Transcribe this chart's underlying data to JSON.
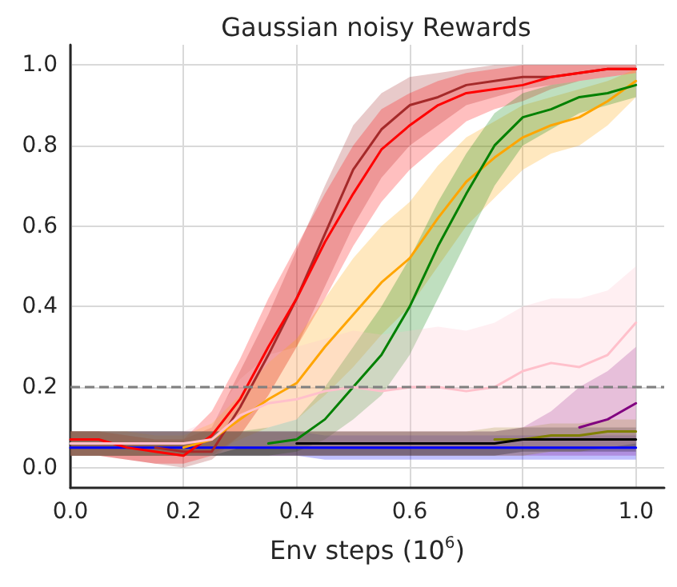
{
  "chart_data": {
    "type": "line",
    "title": "Gaussian noisy Rewards",
    "xlabel": "Env steps (10$^{6}$)",
    "x": [
      0,
      0.05,
      0.1,
      0.15,
      0.2,
      0.25,
      0.3,
      0.35,
      0.4,
      0.45,
      0.5,
      0.55,
      0.6,
      0.65,
      0.7,
      0.75,
      0.8,
      0.85,
      0.9,
      0.95,
      1.0
    ],
    "xlim": [
      0,
      1.05
    ],
    "xticks": [
      {
        "value": 0,
        "label": "0.0"
      },
      0.2,
      0.4,
      0.6,
      0.8,
      {
        "value": 1,
        "label": "1.0"
      }
    ],
    "ylim": [
      -0.05,
      1.05
    ],
    "yticks": [
      {
        "value": 0,
        "label": "0.0"
      },
      0.2,
      0.4,
      0.6,
      0.8,
      {
        "value": 1,
        "label": "1.0"
      }
    ],
    "grid": true,
    "ref_lines": [
      {
        "axis": "y",
        "value": 0.2,
        "color": "#808080",
        "line_style": "dashed"
      }
    ],
    "series": [
      {
        "color": "#0000ff",
        "values": [
          0.05,
          0.05,
          0.05,
          0.05,
          0.05,
          0.05,
          0.05,
          0.05,
          0.05,
          0.05,
          0.05,
          0.05,
          0.05,
          0.05,
          0.05,
          0.05,
          0.05,
          0.05,
          0.05,
          0.05,
          0.05
        ],
        "lower": [
          0.03,
          0.03,
          0.03,
          0.03,
          0.03,
          0.03,
          0.03,
          0.03,
          0.03,
          0.02,
          0.02,
          0.02,
          0.02,
          0.02,
          0.02,
          0.02,
          0.02,
          0.02,
          0.02,
          0.02,
          0.02
        ],
        "upper": [
          0.09,
          0.09,
          0.09,
          0.09,
          0.09,
          0.09,
          0.09,
          0.09,
          0.09,
          0.08,
          0.08,
          0.08,
          0.08,
          0.08,
          0.08,
          0.08,
          0.08,
          0.08,
          0.08,
          0.08,
          0.08
        ]
      },
      {
        "color": "#a52a2a",
        "values": [
          null,
          null,
          null,
          0.05,
          0.04,
          0.04,
          0.15,
          0.28,
          0.42,
          0.58,
          0.74,
          0.84,
          0.9,
          0.92,
          0.95,
          0.96,
          0.97,
          0.97,
          0.98,
          0.99,
          0.99
        ],
        "lower": [
          0.03,
          0.03,
          0.02,
          0.01,
          0.0,
          0.02,
          0.08,
          0.18,
          0.3,
          0.45,
          0.6,
          0.72,
          0.8,
          0.85,
          0.9,
          0.92,
          0.94,
          0.95,
          0.96,
          0.97,
          0.98
        ],
        "upper": [
          0.09,
          0.09,
          0.08,
          0.07,
          0.07,
          0.1,
          0.24,
          0.38,
          0.54,
          0.7,
          0.85,
          0.93,
          0.97,
          0.98,
          0.99,
          1.0,
          1.0,
          1.0,
          1.0,
          1.0,
          1.0
        ]
      },
      {
        "color": "#ff0000",
        "values": [
          0.07,
          0.07,
          0.05,
          0.04,
          0.03,
          0.08,
          0.17,
          0.3,
          0.42,
          0.56,
          0.68,
          0.79,
          0.85,
          0.9,
          0.93,
          0.94,
          0.95,
          0.97,
          0.98,
          0.99,
          0.99
        ],
        "lower": [
          0.03,
          0.03,
          0.02,
          0.01,
          0.01,
          0.03,
          0.08,
          0.18,
          0.3,
          0.42,
          0.55,
          0.66,
          0.74,
          0.8,
          0.86,
          0.89,
          0.91,
          0.94,
          0.96,
          0.97,
          0.98
        ],
        "upper": [
          0.09,
          0.09,
          0.08,
          0.07,
          0.07,
          0.14,
          0.27,
          0.42,
          0.55,
          0.68,
          0.8,
          0.89,
          0.93,
          0.96,
          0.98,
          0.99,
          1.0,
          1.0,
          1.0,
          1.0,
          1.0
        ]
      },
      {
        "color": "#ffa500",
        "values": [
          null,
          null,
          null,
          null,
          0.05,
          0.07,
          0.12,
          0.17,
          0.21,
          0.3,
          0.38,
          0.46,
          0.52,
          0.62,
          0.71,
          0.77,
          0.82,
          0.85,
          0.87,
          0.91,
          0.96
        ],
        "lower": [
          0.03,
          0.03,
          0.03,
          0.03,
          0.03,
          0.04,
          0.07,
          0.1,
          0.12,
          0.18,
          0.25,
          0.33,
          0.4,
          0.5,
          0.6,
          0.67,
          0.74,
          0.78,
          0.8,
          0.85,
          0.92
        ],
        "upper": [
          0.09,
          0.09,
          0.09,
          0.08,
          0.08,
          0.11,
          0.18,
          0.26,
          0.32,
          0.42,
          0.52,
          0.6,
          0.66,
          0.75,
          0.82,
          0.86,
          0.9,
          0.92,
          0.94,
          0.96,
          0.99
        ]
      },
      {
        "color": "#008000",
        "values": [
          null,
          null,
          null,
          null,
          null,
          null,
          null,
          0.06,
          0.07,
          0.12,
          0.2,
          0.28,
          0.4,
          0.55,
          0.68,
          0.8,
          0.87,
          0.89,
          0.92,
          0.93,
          0.95
        ],
        "lower": [
          0.03,
          0.03,
          0.03,
          0.03,
          0.03,
          0.03,
          0.03,
          0.03,
          0.04,
          0.07,
          0.12,
          0.18,
          0.28,
          0.42,
          0.56,
          0.7,
          0.8,
          0.84,
          0.88,
          0.9,
          0.92
        ],
        "upper": [
          0.09,
          0.09,
          0.09,
          0.09,
          0.09,
          0.09,
          0.09,
          0.1,
          0.12,
          0.2,
          0.3,
          0.4,
          0.52,
          0.66,
          0.78,
          0.88,
          0.93,
          0.95,
          0.96,
          0.97,
          0.98
        ]
      },
      {
        "color": "#800080",
        "values": [
          null,
          null,
          null,
          null,
          null,
          null,
          null,
          null,
          null,
          null,
          null,
          null,
          null,
          null,
          null,
          null,
          null,
          null,
          0.1,
          0.12,
          0.16
        ],
        "lower": [
          0.03,
          0.03,
          0.03,
          0.03,
          0.03,
          0.03,
          0.03,
          0.03,
          0.03,
          0.03,
          0.03,
          0.03,
          0.03,
          0.03,
          0.03,
          0.03,
          0.03,
          0.03,
          0.03,
          0.03,
          0.03
        ],
        "upper": [
          0.09,
          0.09,
          0.09,
          0.09,
          0.09,
          0.09,
          0.09,
          0.09,
          0.09,
          0.09,
          0.09,
          0.09,
          0.09,
          0.09,
          0.09,
          0.09,
          0.1,
          0.14,
          0.2,
          0.24,
          0.3
        ]
      },
      {
        "color": "#808000",
        "values": [
          null,
          null,
          null,
          null,
          null,
          null,
          null,
          null,
          null,
          null,
          null,
          null,
          null,
          null,
          null,
          0.07,
          0.07,
          0.08,
          0.08,
          0.09,
          0.09
        ],
        "lower": [
          0.03,
          0.03,
          0.03,
          0.03,
          0.03,
          0.03,
          0.03,
          0.03,
          0.03,
          0.03,
          0.03,
          0.03,
          0.03,
          0.03,
          0.03,
          0.03,
          0.03,
          0.04,
          0.04,
          0.05,
          0.05
        ],
        "upper": [
          0.09,
          0.09,
          0.09,
          0.09,
          0.09,
          0.09,
          0.09,
          0.09,
          0.09,
          0.09,
          0.09,
          0.09,
          0.09,
          0.09,
          0.09,
          0.1,
          0.1,
          0.11,
          0.11,
          0.12,
          0.12
        ]
      },
      {
        "color": "#000000",
        "values": [
          null,
          null,
          null,
          null,
          null,
          null,
          null,
          null,
          0.06,
          0.06,
          0.06,
          0.06,
          0.06,
          0.06,
          0.06,
          0.06,
          0.07,
          0.07,
          0.07,
          0.07,
          0.07
        ],
        "lower": [
          0.03,
          0.03,
          0.03,
          0.03,
          0.03,
          0.03,
          0.03,
          0.03,
          0.03,
          0.03,
          0.03,
          0.03,
          0.03,
          0.03,
          0.03,
          0.03,
          0.04,
          0.04,
          0.04,
          0.04,
          0.04
        ],
        "upper": [
          0.09,
          0.09,
          0.09,
          0.09,
          0.09,
          0.09,
          0.09,
          0.09,
          0.09,
          0.09,
          0.09,
          0.09,
          0.09,
          0.09,
          0.09,
          0.09,
          0.1,
          0.1,
          0.1,
          0.1,
          0.1
        ]
      },
      {
        "color": "#ffc0cb",
        "values": [
          0.06,
          0.06,
          0.06,
          0.06,
          0.06,
          0.07,
          0.13,
          0.16,
          0.17,
          0.19,
          0.2,
          0.19,
          0.2,
          0.2,
          0.19,
          0.2,
          0.24,
          0.26,
          0.25,
          0.28,
          0.36
        ],
        "lower": [
          0.03,
          0.03,
          0.03,
          0.03,
          0.03,
          0.03,
          0.05,
          0.05,
          0.05,
          0.05,
          0.05,
          0.05,
          0.05,
          0.05,
          0.05,
          0.05,
          0.05,
          0.05,
          0.05,
          0.05,
          0.06
        ],
        "upper": [
          0.09,
          0.09,
          0.09,
          0.09,
          0.09,
          0.12,
          0.22,
          0.28,
          0.3,
          0.32,
          0.34,
          0.33,
          0.34,
          0.35,
          0.34,
          0.36,
          0.4,
          0.42,
          0.42,
          0.44,
          0.5
        ]
      }
    ]
  }
}
